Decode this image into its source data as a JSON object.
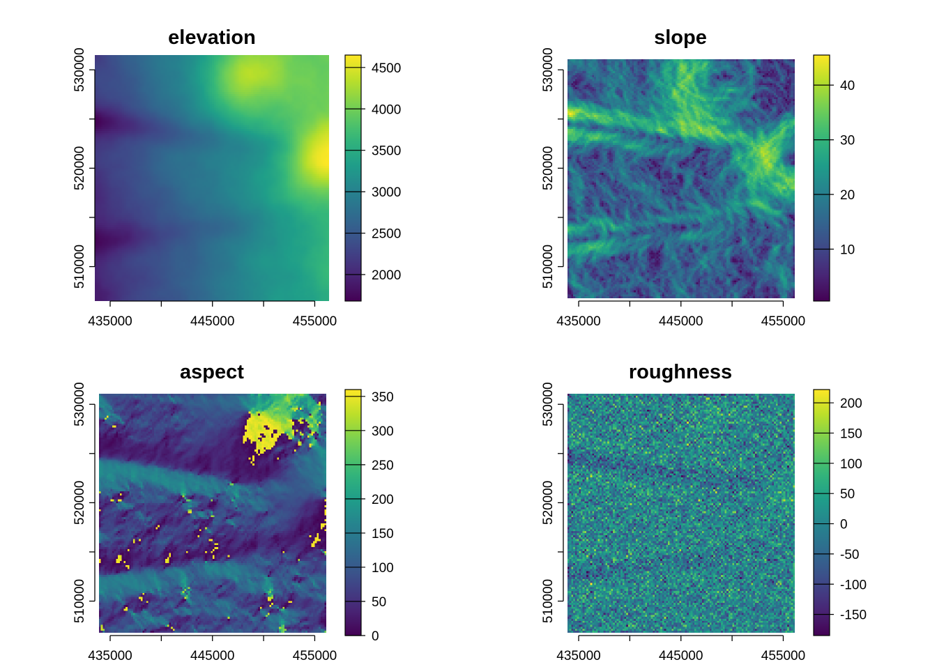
{
  "chart_data": [
    {
      "type": "heatmap",
      "title": "elevation",
      "field": "elevation",
      "x_ticks": [
        435000,
        440000,
        445000,
        450000,
        455000
      ],
      "x_tick_labels": [
        "435000",
        "",
        "445000",
        "",
        "455000"
      ],
      "y_ticks": [
        510000,
        515000,
        520000,
        525000,
        530000
      ],
      "y_tick_labels": [
        "510000",
        "",
        "520000",
        "",
        "530000"
      ],
      "xlim": [
        433500,
        456400
      ],
      "ylim": [
        506500,
        531500
      ],
      "legend": {
        "min": 1680,
        "max": 4650,
        "ticks": [
          2000,
          2500,
          3000,
          3500,
          4000,
          4500
        ]
      },
      "colormap": "viridis"
    },
    {
      "type": "heatmap",
      "title": "slope",
      "field": "slope",
      "x_ticks": [
        435000,
        440000,
        445000,
        450000,
        455000
      ],
      "x_tick_labels": [
        "435000",
        "",
        "445000",
        "",
        "455000"
      ],
      "y_ticks": [
        510000,
        515000,
        520000,
        525000,
        530000
      ],
      "y_tick_labels": [
        "510000",
        "",
        "520000",
        "",
        "530000"
      ],
      "xlim": [
        433500,
        456400
      ],
      "ylim": [
        506500,
        531500
      ],
      "legend": {
        "min": 0.5,
        "max": 45.5,
        "ticks": [
          10,
          20,
          30,
          40
        ]
      },
      "colormap": "viridis"
    },
    {
      "type": "heatmap",
      "title": "aspect",
      "field": "aspect",
      "x_ticks": [
        435000,
        440000,
        445000,
        450000,
        455000
      ],
      "x_tick_labels": [
        "435000",
        "",
        "445000",
        "",
        "455000"
      ],
      "y_ticks": [
        510000,
        515000,
        520000,
        525000,
        530000
      ],
      "y_tick_labels": [
        "510000",
        "",
        "520000",
        "",
        "530000"
      ],
      "xlim": [
        433500,
        456400
      ],
      "ylim": [
        506500,
        531500
      ],
      "legend": {
        "min": 0,
        "max": 360,
        "ticks": [
          0,
          50,
          100,
          150,
          200,
          250,
          300,
          350
        ]
      },
      "colormap": "viridis"
    },
    {
      "type": "heatmap",
      "title": "roughness",
      "field": "roughness",
      "x_ticks": [
        435000,
        440000,
        445000,
        450000,
        455000
      ],
      "x_tick_labels": [
        "435000",
        "",
        "445000",
        "",
        "455000"
      ],
      "y_ticks": [
        510000,
        515000,
        520000,
        525000,
        530000
      ],
      "y_tick_labels": [
        "510000",
        "",
        "520000",
        "",
        "530000"
      ],
      "xlim": [
        433500,
        456400
      ],
      "ylim": [
        506500,
        531500
      ],
      "legend": {
        "min": -185,
        "max": 222,
        "ticks": [
          -150,
          -100,
          -50,
          0,
          50,
          100,
          150,
          200
        ]
      },
      "colormap": "viridis"
    }
  ]
}
